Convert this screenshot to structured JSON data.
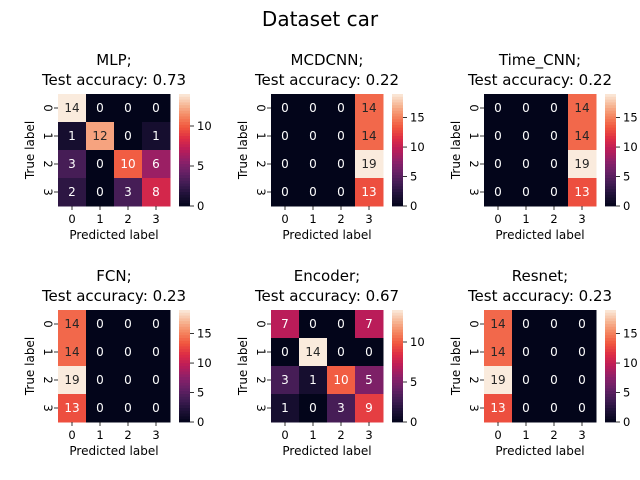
{
  "figure": {
    "title": "Dataset car"
  },
  "chart_data": [
    {
      "type": "heatmap",
      "title_line1": "MLP;",
      "title_line2": "Test accuracy: 0.73",
      "xlabel": "Predicted label",
      "ylabel": "True label",
      "x_ticks": [
        "0",
        "1",
        "2",
        "3"
      ],
      "y_ticks": [
        "0",
        "1",
        "2",
        "3"
      ],
      "matrix": [
        [
          14,
          0,
          0,
          0
        ],
        [
          1,
          12,
          0,
          1
        ],
        [
          3,
          0,
          10,
          6
        ],
        [
          2,
          0,
          3,
          8
        ]
      ],
      "vmax": 14,
      "colorbar_ticks": [
        "0",
        "5",
        "10"
      ],
      "colorbar_values": [
        0,
        5,
        10
      ]
    },
    {
      "type": "heatmap",
      "title_line1": "MCDCNN;",
      "title_line2": "Test accuracy: 0.22",
      "xlabel": "Predicted label",
      "ylabel": "True label",
      "x_ticks": [
        "0",
        "1",
        "2",
        "3"
      ],
      "y_ticks": [
        "0",
        "1",
        "2",
        "3"
      ],
      "matrix": [
        [
          0,
          0,
          0,
          14
        ],
        [
          0,
          0,
          0,
          14
        ],
        [
          0,
          0,
          0,
          19
        ],
        [
          0,
          0,
          0,
          13
        ]
      ],
      "vmax": 19,
      "colorbar_ticks": [
        "0",
        "5",
        "10",
        "15"
      ],
      "colorbar_values": [
        0,
        5,
        10,
        15
      ]
    },
    {
      "type": "heatmap",
      "title_line1": "Time_CNN;",
      "title_line2": "Test accuracy: 0.22",
      "xlabel": "Predicted label",
      "ylabel": "True label",
      "x_ticks": [
        "0",
        "1",
        "2",
        "3"
      ],
      "y_ticks": [
        "0",
        "1",
        "2",
        "3"
      ],
      "matrix": [
        [
          0,
          0,
          0,
          14
        ],
        [
          0,
          0,
          0,
          14
        ],
        [
          0,
          0,
          0,
          19
        ],
        [
          0,
          0,
          0,
          13
        ]
      ],
      "vmax": 19,
      "colorbar_ticks": [
        "0",
        "5",
        "10",
        "15"
      ],
      "colorbar_values": [
        0,
        5,
        10,
        15
      ]
    },
    {
      "type": "heatmap",
      "title_line1": "FCN;",
      "title_line2": "Test accuracy: 0.23",
      "xlabel": "Predicted label",
      "ylabel": "True label",
      "x_ticks": [
        "0",
        "1",
        "2",
        "3"
      ],
      "y_ticks": [
        "0",
        "1",
        "2",
        "3"
      ],
      "matrix": [
        [
          14,
          0,
          0,
          0
        ],
        [
          14,
          0,
          0,
          0
        ],
        [
          19,
          0,
          0,
          0
        ],
        [
          13,
          0,
          0,
          0
        ]
      ],
      "vmax": 19,
      "colorbar_ticks": [
        "0",
        "5",
        "10",
        "15"
      ],
      "colorbar_values": [
        0,
        5,
        10,
        15
      ]
    },
    {
      "type": "heatmap",
      "title_line1": "Encoder;",
      "title_line2": "Test accuracy: 0.67",
      "xlabel": "Predicted label",
      "ylabel": "True label",
      "x_ticks": [
        "0",
        "1",
        "2",
        "3"
      ],
      "y_ticks": [
        "0",
        "1",
        "2",
        "3"
      ],
      "matrix": [
        [
          7,
          0,
          0,
          7
        ],
        [
          0,
          14,
          0,
          0
        ],
        [
          3,
          1,
          10,
          5
        ],
        [
          1,
          0,
          3,
          9
        ]
      ],
      "vmax": 14,
      "colorbar_ticks": [
        "0",
        "5",
        "10"
      ],
      "colorbar_values": [
        0,
        5,
        10
      ]
    },
    {
      "type": "heatmap",
      "title_line1": "Resnet;",
      "title_line2": "Test accuracy: 0.23",
      "xlabel": "Predicted label",
      "ylabel": "True label",
      "x_ticks": [
        "0",
        "1",
        "2",
        "3"
      ],
      "y_ticks": [
        "0",
        "1",
        "2",
        "3"
      ],
      "matrix": [
        [
          14,
          0,
          0,
          0
        ],
        [
          14,
          0,
          0,
          0
        ],
        [
          19,
          0,
          0,
          0
        ],
        [
          13,
          0,
          0,
          0
        ]
      ],
      "vmax": 19,
      "colorbar_ticks": [
        "0",
        "5",
        "10",
        "15"
      ],
      "colorbar_values": [
        0,
        5,
        10,
        15
      ]
    }
  ]
}
